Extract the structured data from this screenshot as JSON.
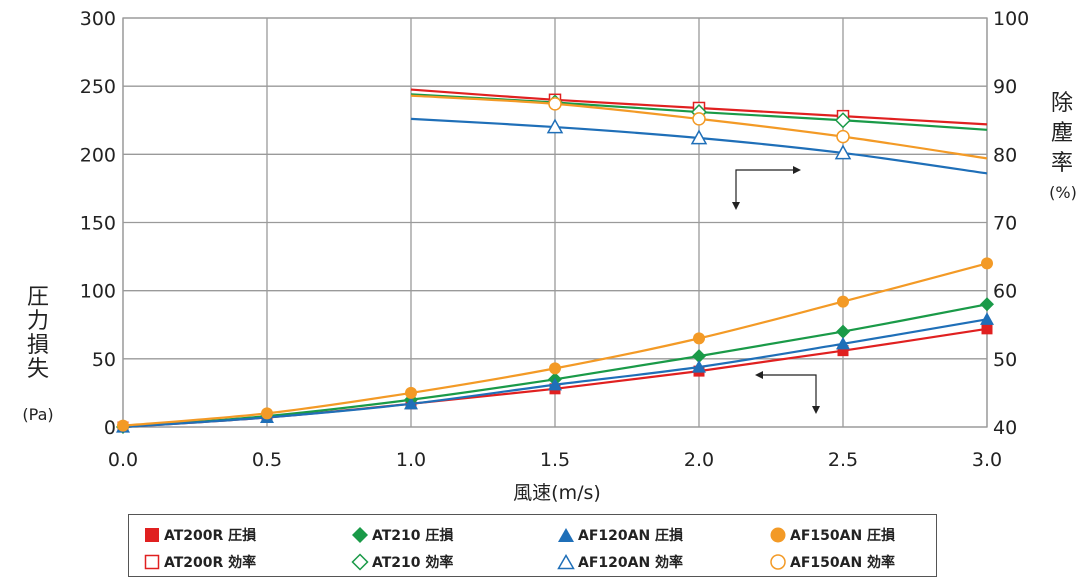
{
  "chart_data": {
    "type": "line",
    "xlabel": "風速(m/s)",
    "ylabel": "圧力損失",
    "ylabel_unit": "(Pa)",
    "y2label": "除塵率",
    "y2label_unit": "(%)",
    "xlim": [
      0.0,
      3.0
    ],
    "ylim": [
      0,
      300
    ],
    "y2lim": [
      40,
      100
    ],
    "x_ticks": [
      "0.0",
      "0.5",
      "1.0",
      "1.5",
      "2.0",
      "2.5",
      "3.0"
    ],
    "y_ticks": [
      "0",
      "50",
      "100",
      "150",
      "200",
      "250",
      "300"
    ],
    "y2_ticks": [
      "40",
      "50",
      "60",
      "70",
      "80",
      "90",
      "100"
    ],
    "grid": true,
    "legend_position": "bottom",
    "series": [
      {
        "name": "AT200R 圧損",
        "axis": "left",
        "color": "#e02020",
        "marker": "square-filled",
        "x": [
          0,
          0.5,
          1.0,
          1.5,
          2.0,
          2.5,
          3.0
        ],
        "y": [
          0,
          7,
          17,
          28,
          41,
          56,
          72
        ]
      },
      {
        "name": "AT210 圧損",
        "axis": "left",
        "color": "#1a9a48",
        "marker": "diamond-filled",
        "x": [
          0,
          0.5,
          1.0,
          1.5,
          2.0,
          2.5,
          3.0
        ],
        "y": [
          0,
          8,
          20,
          35,
          52,
          70,
          90
        ]
      },
      {
        "name": "AF120AN 圧損",
        "axis": "left",
        "color": "#1f6fb8",
        "marker": "triangle-filled",
        "x": [
          0,
          0.5,
          1.0,
          1.5,
          2.0,
          2.5,
          3.0
        ],
        "y": [
          0,
          7,
          17,
          31,
          44,
          61,
          79
        ]
      },
      {
        "name": "AF150AN 圧損",
        "axis": "left",
        "color": "#f39a26",
        "marker": "circle-filled",
        "x": [
          0,
          0.5,
          1.0,
          1.5,
          2.0,
          2.5,
          3.0
        ],
        "y": [
          1,
          10,
          25,
          43,
          65,
          92,
          120
        ]
      },
      {
        "name": "AT200R 効率",
        "axis": "right",
        "color": "#e02020",
        "marker": "square-open",
        "x": [
          1.0,
          1.5,
          2.0,
          2.5,
          3.0
        ],
        "y": [
          89.5,
          88,
          86.8,
          85.6,
          84.4
        ],
        "marker_x": [
          1.5,
          2.0,
          2.5
        ]
      },
      {
        "name": "AT210 効率",
        "axis": "right",
        "color": "#1a9a48",
        "marker": "diamond-open",
        "x": [
          1.0,
          1.5,
          2.0,
          2.5,
          3.0
        ],
        "y": [
          88.8,
          87.6,
          86.2,
          85,
          83.6
        ],
        "marker_x": [
          1.5,
          2.0,
          2.5
        ]
      },
      {
        "name": "AF120AN 効率",
        "axis": "right",
        "color": "#1f6fb8",
        "marker": "triangle-open",
        "x": [
          1.0,
          1.5,
          2.0,
          2.5,
          3.0
        ],
        "y": [
          85.2,
          84,
          82.4,
          80.2,
          77.2
        ],
        "marker_x": [
          1.5,
          2.0,
          2.5
        ]
      },
      {
        "name": "AF150AN 効率",
        "axis": "right",
        "color": "#f39a26",
        "marker": "circle-open",
        "x": [
          1.0,
          1.5,
          2.0,
          2.5,
          3.0
        ],
        "y": [
          88.6,
          87.4,
          85.2,
          82.6,
          79.4
        ],
        "marker_x": [
          1.5,
          2.0,
          2.5
        ]
      }
    ]
  },
  "legend": [
    {
      "label": "AT200R 圧損",
      "marker": "square-filled",
      "color": "#e02020"
    },
    {
      "label": "AT210 圧損",
      "marker": "diamond-filled",
      "color": "#1a9a48"
    },
    {
      "label": "AF120AN 圧損",
      "marker": "triangle-filled",
      "color": "#1f6fb8"
    },
    {
      "label": "AF150AN 圧損",
      "marker": "circle-filled",
      "color": "#f39a26"
    },
    {
      "label": "AT200R 効率",
      "marker": "square-open",
      "color": "#e02020"
    },
    {
      "label": "AT210 効率",
      "marker": "diamond-open",
      "color": "#1a9a48"
    },
    {
      "label": "AF120AN 効率",
      "marker": "triangle-open",
      "color": "#1f6fb8"
    },
    {
      "label": "AF150AN 効率",
      "marker": "circle-open",
      "color": "#f39a26"
    }
  ]
}
